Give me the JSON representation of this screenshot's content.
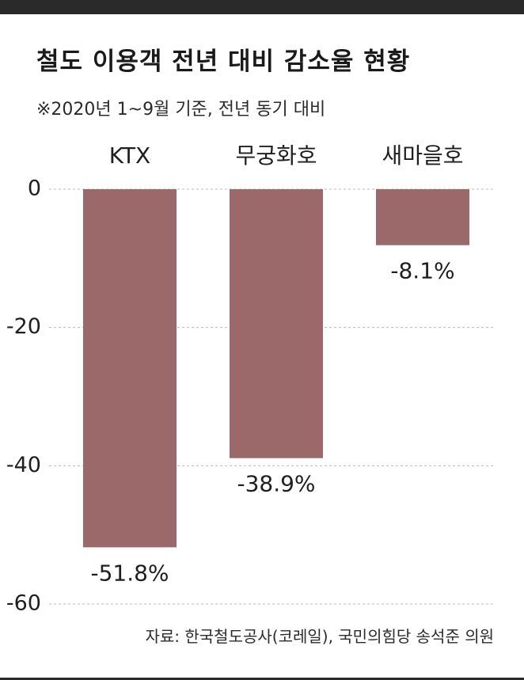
{
  "title": "철도 이용객 전년 대비 감소율 현황",
  "subtitle": "※2020년 1~9월 기준, 전년 동기 대비",
  "source": "자료: 한국철도공사(코레일), 국민의힘당 송석준 의원",
  "colors": {
    "bar": "#9b6969",
    "grid": "#b8b8b8",
    "topbar": "#2a2a2a"
  },
  "chart_data": {
    "type": "bar",
    "title": "철도 이용객 전년 대비 감소율 현황",
    "subtitle": "※2020년 1~9월 기준, 전년 동기 대비",
    "categories": [
      "KTX",
      "무궁화호",
      "새마을호"
    ],
    "values": [
      -51.8,
      -38.9,
      -8.1
    ],
    "data_labels": [
      "-51.8%",
      "-38.9%",
      "-8.1%"
    ],
    "y_ticks": [
      0,
      -20,
      -40,
      -60
    ],
    "y_tick_labels": [
      "0",
      "-20",
      "-40",
      "-60"
    ],
    "ylim": [
      -60,
      0
    ],
    "grid": true,
    "grid_style": "dashed",
    "category_labels_position": "top",
    "xlabel": "",
    "ylabel": ""
  }
}
